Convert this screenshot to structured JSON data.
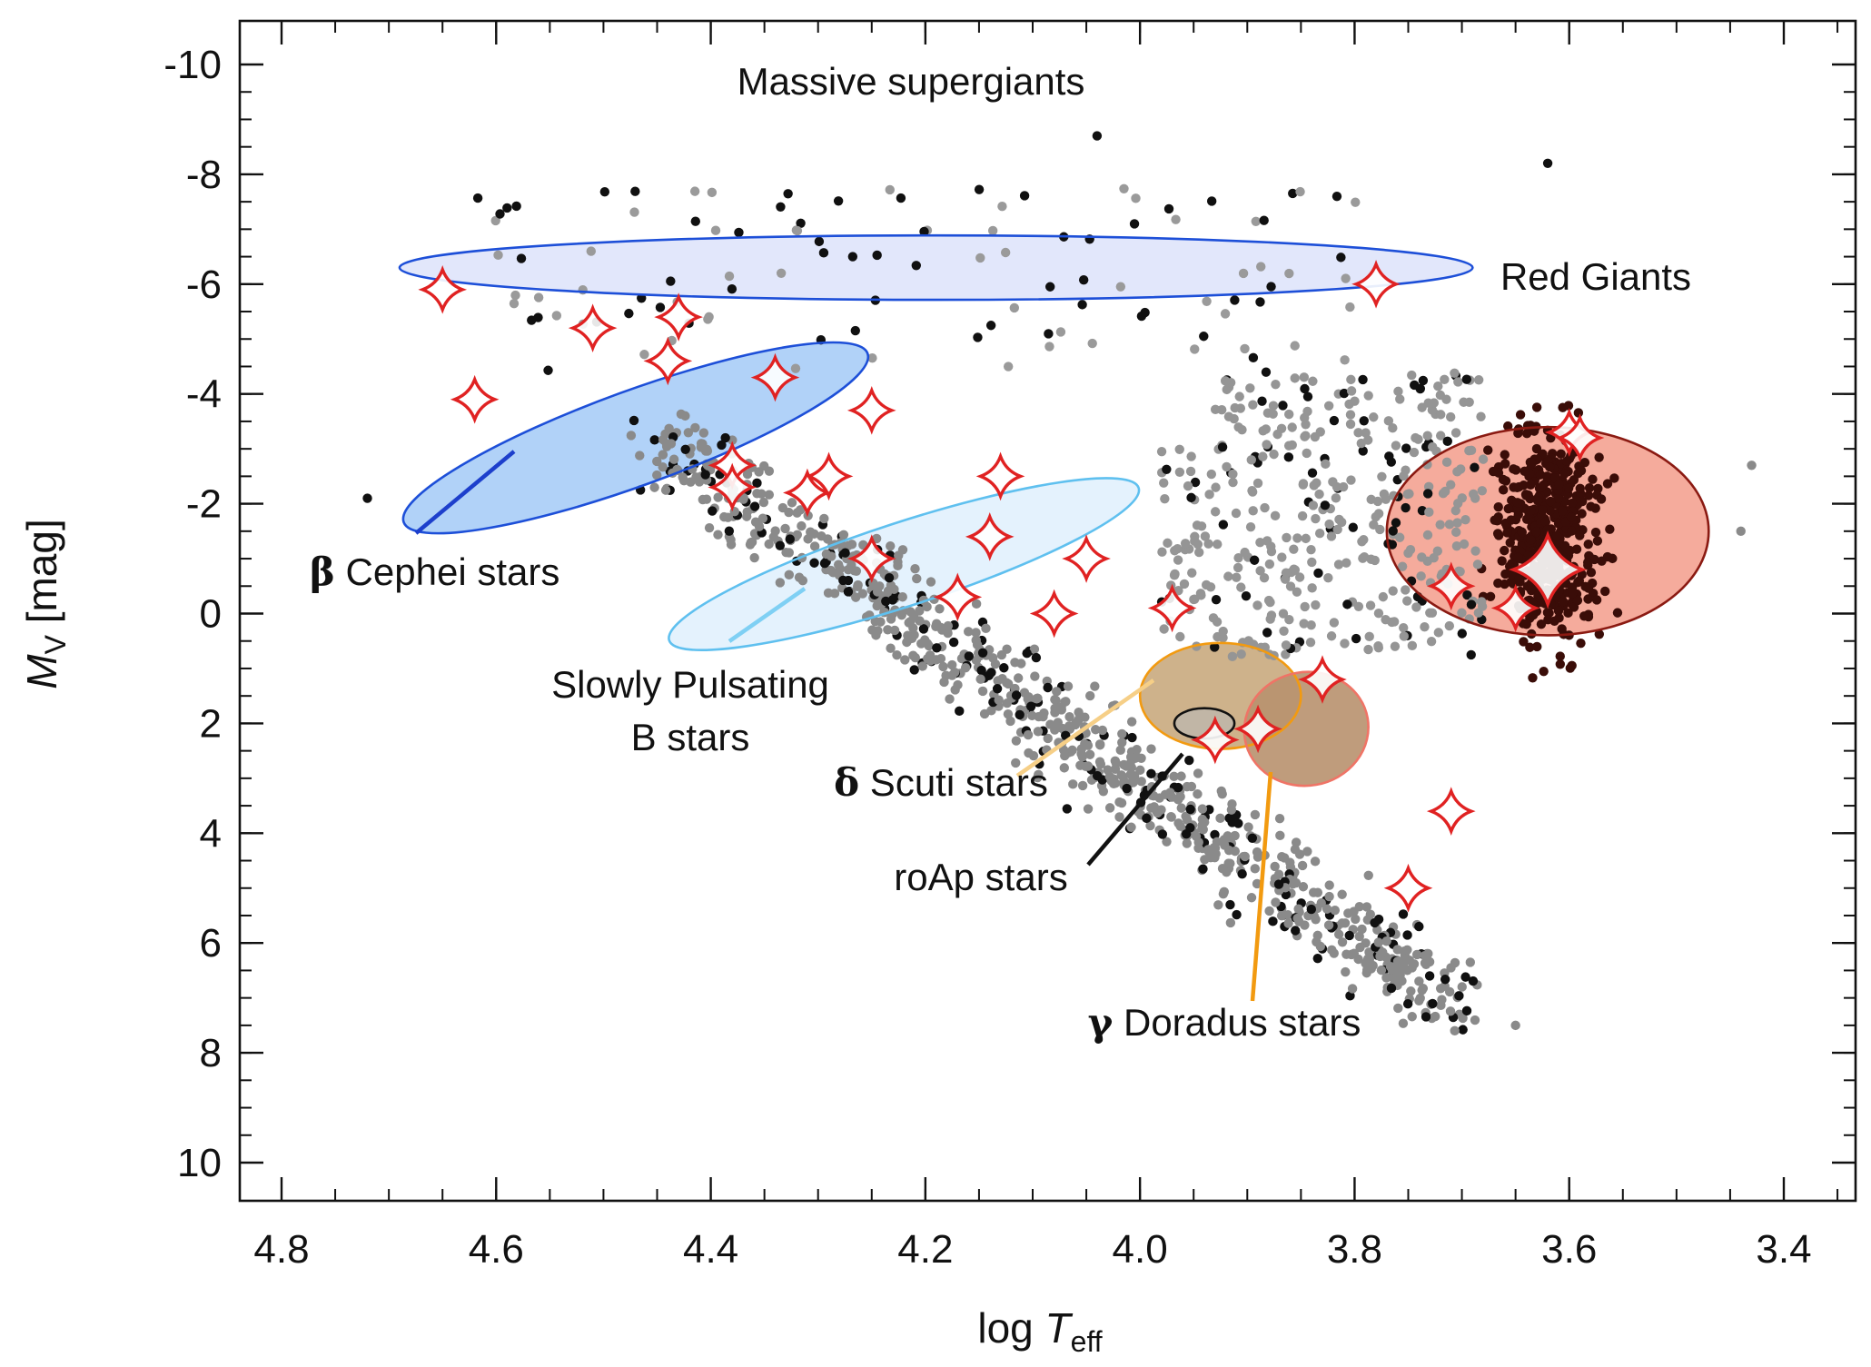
{
  "chart_data": {
    "type": "scatter",
    "title": "",
    "xlabel": "log T",
    "xlabel_sub": "eff",
    "ylabel": "M",
    "ylabel_sub": "V",
    "ylabel_unit": "[mag]",
    "xlim": [
      4.8,
      3.4
    ],
    "ylim": [
      -10,
      10
    ],
    "x_reversed": true,
    "y_reversed": true,
    "x_ticks": [
      "4.8",
      "4.6",
      "4.4",
      "4.2",
      "4.0",
      "3.8",
      "3.6",
      "3.4"
    ],
    "y_ticks": [
      "-10",
      "-8",
      "-6",
      "-4",
      "-2",
      "0",
      "2",
      "4",
      "6",
      "8",
      "10"
    ],
    "grid": false,
    "regions": [
      {
        "name": "Massive supergiants",
        "color": "#1d4fd8",
        "fill": "#dfe4fb",
        "cx": 4.19,
        "cy": -6.3,
        "rx": 0.5,
        "ry": 1.7,
        "rot": 0
      },
      {
        "name": "Red Giants",
        "color": "#8b1a12",
        "fill": "#f4a291",
        "cx": 3.62,
        "cy": -1.5,
        "rx": 0.15,
        "ry": 5.5,
        "rot": 0
      },
      {
        "name": "β Cephei stars",
        "color": "#1d4fd8",
        "fill": "#a9cdf7",
        "cx": 4.47,
        "cy": -3.2,
        "rx": 0.23,
        "ry": 2.5,
        "rot": -20
      },
      {
        "name": "Slowly Pulsating B stars",
        "color": "#5fc0ef",
        "fill": "#e1f1fd",
        "cx": 4.22,
        "cy": -0.9,
        "rx": 0.23,
        "ry": 2.2,
        "rot": -18
      },
      {
        "name": "δ Scuti stars",
        "color": "#f29a10",
        "fill": "#c9aa7e",
        "cx": 3.925,
        "cy": 1.5,
        "rx": 0.075,
        "ry": 2.8,
        "rot": 0
      },
      {
        "name": "γ Doradus stars",
        "color": "#ef7466",
        "fill": "#b8916e",
        "cx": 3.845,
        "cy": 2.1,
        "rx": 0.058,
        "ry": 3.0,
        "rot": -10
      },
      {
        "name": "roAp stars",
        "color": "#111111",
        "fill": "#c0b6a8",
        "cx": 3.94,
        "cy": 2.0,
        "rx": 0.028,
        "ry": 0.8,
        "rot": 0
      }
    ],
    "annotations": [
      {
        "prefix": "β",
        "text": " Cephei stars"
      },
      {
        "prefix": "",
        "text": "Slowly Pulsating"
      },
      {
        "prefix": "",
        "text": "B stars"
      },
      {
        "prefix": "δ",
        "text": " Scuti stars"
      },
      {
        "prefix": "",
        "text": "roAp stars"
      },
      {
        "prefix": "γ",
        "text": " Doradus stars"
      },
      {
        "prefix": "",
        "text": "Massive supergiants"
      },
      {
        "prefix": "",
        "text": "Red Giants"
      }
    ],
    "series": [
      {
        "name": "",
        "marker": "star",
        "color": "#e02222",
        "points": [
          [
            4.65,
            -5.9
          ],
          [
            4.62,
            -3.9
          ],
          [
            4.51,
            -5.2
          ],
          [
            4.43,
            -5.4
          ],
          [
            4.44,
            -4.6
          ],
          [
            4.34,
            -4.3
          ],
          [
            4.25,
            -3.7
          ],
          [
            4.38,
            -2.7
          ],
          [
            4.38,
            -2.3
          ],
          [
            4.29,
            -2.5
          ],
          [
            4.31,
            -2.2
          ],
          [
            4.13,
            -2.5
          ],
          [
            4.14,
            -1.4
          ],
          [
            4.25,
            -1.0
          ],
          [
            4.17,
            -0.3
          ],
          [
            4.05,
            -1.0
          ],
          [
            4.08,
            0.0
          ],
          [
            3.97,
            -0.1
          ],
          [
            3.83,
            1.2
          ],
          [
            3.89,
            2.1
          ],
          [
            3.93,
            2.3
          ],
          [
            3.78,
            -6.0
          ],
          [
            3.71,
            3.6
          ],
          [
            3.75,
            5.0
          ],
          [
            3.71,
            -0.5
          ],
          [
            3.65,
            -0.1
          ],
          [
            3.6,
            -3.3
          ],
          [
            3.59,
            -3.2
          ],
          [
            3.62,
            -0.8
          ]
        ]
      }
    ]
  }
}
